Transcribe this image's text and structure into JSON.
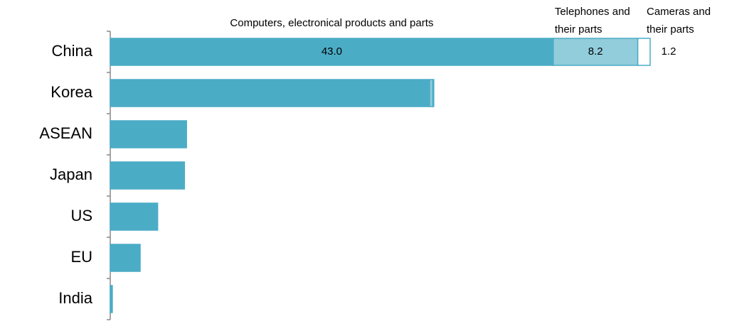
{
  "chart_data": {
    "type": "stacked-bar-horizontal",
    "categories": [
      "China",
      "Korea",
      "ASEAN",
      "Japan",
      "US",
      "EU",
      "India"
    ],
    "series": [
      {
        "name": "Computers, electronical products and parts",
        "color": "#4bacc6",
        "values": [
          43.0,
          31.0,
          7.4,
          7.2,
          4.6,
          2.9,
          0.2
        ],
        "value_labels": [
          "43.0",
          null,
          null,
          null,
          null,
          null,
          null
        ]
      },
      {
        "name": "Telephones and their parts",
        "color": "#92cddc",
        "values": [
          8.2,
          0.3,
          0,
          0,
          0,
          0,
          0
        ],
        "value_labels": [
          "8.2",
          null,
          null,
          null,
          null,
          null,
          null
        ]
      },
      {
        "name": "Cameras and their parts",
        "color": "#ffffff",
        "values": [
          1.2,
          0.1,
          0,
          0,
          0,
          0,
          0
        ],
        "value_labels": [
          "1.2",
          null,
          null,
          null,
          null,
          null,
          null
        ]
      }
    ],
    "outline_color": "#4bacc6"
  }
}
